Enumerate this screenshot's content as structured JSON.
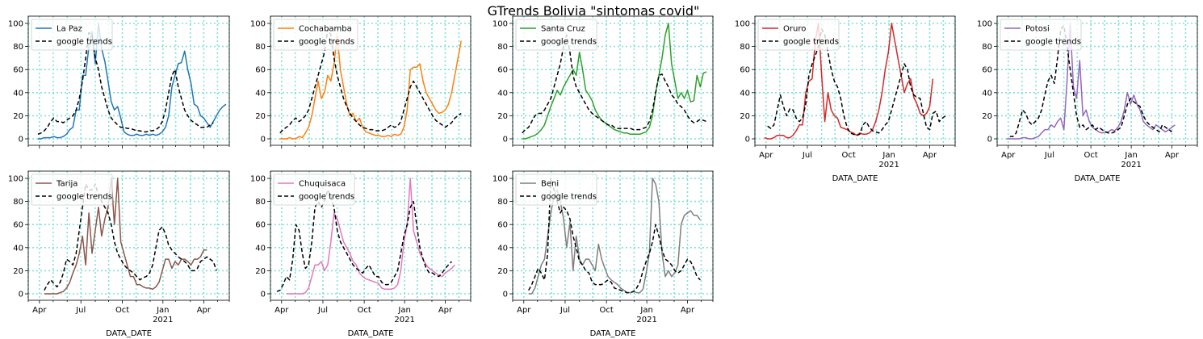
{
  "figure": {
    "title": "GTrends Bolivia \"sintomas covid\"",
    "background": "#ffffff",
    "grid_color": "#7fe3d6"
  },
  "chart_data": [
    {
      "type": "line",
      "region": "La Paz",
      "color": "#1f77b4",
      "x_start": "2020-03-29",
      "series": [
        {
          "name": "La Paz",
          "style": "solid",
          "start_week": 0,
          "values": [
            0,
            0,
            1,
            1,
            1,
            2,
            1,
            1,
            2,
            4,
            8,
            10,
            25,
            25,
            55,
            55,
            80,
            93,
            65,
            100,
            78,
            67,
            50,
            32,
            25,
            28,
            18,
            6,
            4,
            3,
            3,
            4,
            3,
            3,
            4,
            3,
            4,
            3,
            4,
            6,
            10,
            20,
            45,
            55,
            65,
            66,
            76,
            60,
            48,
            30,
            28,
            20,
            18,
            14,
            10,
            15,
            20,
            25,
            28,
            30
          ]
        },
        {
          "name": "google trends",
          "style": "dashed",
          "start_week": 0,
          "values": [
            4,
            5,
            7,
            10,
            15,
            18,
            15,
            15,
            14,
            16,
            18,
            20,
            25,
            35,
            50,
            70,
            92,
            90,
            70,
            60,
            45,
            35,
            25,
            18,
            15,
            12,
            10,
            10,
            9,
            9,
            8,
            7,
            7,
            6,
            6,
            7,
            7,
            8,
            10,
            15,
            25,
            40,
            55,
            60,
            45,
            35,
            25,
            20,
            16,
            14,
            12,
            10,
            10,
            10,
            12,
            14
          ]
        }
      ],
      "ylim": [
        0,
        100
      ],
      "y_ticks": [
        0,
        20,
        40,
        60,
        80,
        100
      ],
      "x_ticks": [],
      "xlabel": ""
    },
    {
      "type": "line",
      "region": "Cochabamba",
      "color": "#ff7f0e",
      "x_start": "2020-03-29",
      "series": [
        {
          "name": "Cochabamba",
          "style": "solid",
          "start_week": 0,
          "values": [
            0,
            0,
            0,
            1,
            0,
            0,
            2,
            1,
            5,
            10,
            20,
            35,
            50,
            35,
            40,
            55,
            50,
            65,
            90,
            60,
            45,
            30,
            20,
            22,
            15,
            18,
            10,
            6,
            5,
            4,
            3,
            3,
            2,
            2,
            3,
            2,
            4,
            3,
            4,
            10,
            25,
            60,
            62,
            62,
            65,
            50,
            40,
            35,
            30,
            25,
            22,
            23,
            25,
            30,
            40,
            55,
            70,
            85
          ]
        },
        {
          "name": "google trends",
          "style": "dashed",
          "start_week": 0,
          "values": [
            5,
            8,
            10,
            12,
            16,
            18,
            15,
            17,
            20,
            25,
            35,
            45,
            55,
            65,
            75,
            95,
            90,
            70,
            55,
            45,
            35,
            28,
            22,
            18,
            15,
            12,
            10,
            9,
            8,
            8,
            7,
            7,
            7,
            8,
            10,
            12,
            10,
            11,
            15,
            25,
            35,
            45,
            50,
            45,
            40,
            35,
            30,
            25,
            20,
            16,
            14,
            12,
            10,
            12,
            14,
            18,
            20,
            22
          ]
        }
      ],
      "ylim": [
        0,
        100
      ],
      "y_ticks": [
        0,
        20,
        40,
        60,
        80,
        100
      ],
      "x_ticks": [],
      "xlabel": ""
    },
    {
      "type": "line",
      "region": "Santa Cruz",
      "color": "#2ca02c",
      "x_start": "2020-03-29",
      "series": [
        {
          "name": "Santa Cruz",
          "style": "solid",
          "start_week": 0,
          "values": [
            0,
            0,
            1,
            2,
            3,
            5,
            8,
            12,
            20,
            28,
            35,
            42,
            38,
            45,
            50,
            55,
            60,
            55,
            75,
            60,
            42,
            38,
            33,
            25,
            20,
            16,
            14,
            12,
            10,
            8,
            7,
            6,
            5,
            5,
            4,
            4,
            4,
            4,
            5,
            6,
            10,
            20,
            40,
            55,
            70,
            90,
            100,
            65,
            50,
            35,
            40,
            35,
            42,
            32,
            33,
            55,
            45,
            57,
            58
          ]
        },
        {
          "name": "google trends",
          "style": "dashed",
          "start_week": 0,
          "values": [
            5,
            8,
            10,
            15,
            20,
            22,
            22,
            25,
            30,
            35,
            45,
            55,
            65,
            80,
            90,
            75,
            55,
            45,
            40,
            35,
            30,
            25,
            22,
            20,
            18,
            16,
            14,
            12,
            12,
            10,
            9,
            9,
            9,
            9,
            9,
            8,
            8,
            8,
            9,
            10,
            15,
            25,
            40,
            55,
            56,
            50,
            45,
            38,
            35,
            30,
            28,
            25,
            20,
            16,
            14,
            15,
            17,
            16,
            15
          ]
        }
      ],
      "ylim": [
        0,
        100
      ],
      "y_ticks": [
        0,
        20,
        40,
        60,
        80,
        100
      ],
      "x_ticks": [],
      "xlabel": ""
    },
    {
      "type": "line",
      "region": "Oruro",
      "color": "#d62728",
      "x_start": "2020-03-08",
      "series": [
        {
          "name": "Oruro",
          "style": "solid",
          "start_week": 3,
          "values": [
            1,
            0,
            0,
            1,
            3,
            3,
            3,
            1,
            1,
            3,
            7,
            12,
            12,
            40,
            50,
            52,
            85,
            100,
            55,
            15,
            40,
            25,
            20,
            18,
            10,
            9,
            8,
            6,
            5,
            3,
            5,
            4,
            4,
            5,
            8,
            15,
            25,
            40,
            60,
            75,
            100,
            85,
            70,
            55,
            40,
            48,
            52,
            36,
            30,
            22,
            20,
            22,
            28,
            52
          ]
        },
        {
          "name": "google trends",
          "style": "dashed",
          "start_week": 4,
          "values": [
            11,
            9,
            12,
            25,
            38,
            28,
            20,
            26,
            25,
            18,
            15,
            18,
            30,
            55,
            65,
            72,
            80,
            95,
            90,
            75,
            60,
            50,
            45,
            35,
            20,
            10,
            5,
            4,
            3,
            4,
            12,
            15,
            10,
            7,
            6,
            5,
            8,
            12,
            15,
            25,
            35,
            45,
            55,
            65,
            60,
            45,
            38,
            36,
            35,
            22,
            10,
            8,
            22,
            24,
            15,
            18,
            20
          ]
        }
      ],
      "ylim": [
        0,
        100
      ],
      "y_ticks": [
        0,
        20,
        40,
        60,
        80,
        100
      ],
      "x_ticks": [
        "Apr",
        "Jul",
        "Oct",
        "Jan\n2021",
        "Apr"
      ],
      "xlabel": "DATA_DATE"
    },
    {
      "type": "line",
      "region": "Potosi",
      "color": "#9467bd",
      "x_start": "2020-03-08",
      "series": [
        {
          "name": "Potosi",
          "style": "solid",
          "start_week": 3,
          "values": [
            0,
            0,
            0,
            0,
            0,
            1,
            1,
            0,
            0,
            1,
            2,
            5,
            8,
            8,
            12,
            10,
            15,
            18,
            8,
            50,
            100,
            45,
            35,
            68,
            20,
            25,
            15,
            10,
            8,
            6,
            5,
            6,
            6,
            8,
            7,
            10,
            15,
            25,
            40,
            30,
            38,
            30,
            25,
            15,
            12,
            10,
            8,
            12,
            10,
            8,
            6,
            8,
            10,
            12
          ]
        },
        {
          "name": "google trends",
          "style": "dashed",
          "start_week": 4,
          "values": [
            2,
            2,
            5,
            15,
            25,
            22,
            15,
            12,
            15,
            18,
            25,
            38,
            50,
            55,
            48,
            70,
            95,
            98,
            80,
            60,
            40,
            20,
            10,
            12,
            8,
            10,
            12,
            8,
            10,
            8,
            6,
            5,
            5,
            6,
            8,
            10,
            20,
            30,
            35,
            32,
            30,
            28,
            20,
            15,
            12,
            10,
            8,
            6,
            12,
            10,
            8,
            6
          ]
        }
      ],
      "ylim": [
        0,
        100
      ],
      "y_ticks": [
        0,
        20,
        40,
        60,
        80,
        100
      ],
      "x_ticks": [
        "Apr",
        "Jul",
        "Oct",
        "Jan\n2021",
        "Apr"
      ],
      "xlabel": "DATA_DATE"
    },
    {
      "type": "line",
      "region": "Tarija",
      "color": "#8c564b",
      "x_start": "2020-03-08",
      "series": [
        {
          "name": "Tarija",
          "style": "solid",
          "start_week": 5,
          "values": [
            0,
            0,
            0,
            0,
            0,
            1,
            2,
            5,
            10,
            18,
            25,
            35,
            50,
            25,
            70,
            35,
            55,
            75,
            50,
            65,
            75,
            100,
            60,
            100,
            45,
            35,
            25,
            15,
            15,
            8,
            8,
            6,
            5,
            5,
            4,
            6,
            10,
            20,
            30,
            30,
            22,
            28,
            25,
            30,
            30,
            28,
            25,
            30,
            30,
            32,
            38,
            38
          ]
        },
        {
          "name": "google trends",
          "style": "dashed",
          "start_week": 5,
          "values": [
            3,
            8,
            12,
            9,
            6,
            10,
            18,
            30,
            28,
            25,
            35,
            55,
            75,
            95,
            90,
            90,
            95,
            85,
            80,
            75,
            70,
            60,
            45,
            35,
            30,
            25,
            22,
            20,
            18,
            15,
            12,
            14,
            15,
            18,
            25,
            40,
            55,
            58,
            52,
            42,
            38,
            35,
            32,
            30,
            28,
            25,
            20,
            20,
            22,
            28,
            30,
            32,
            30,
            28,
            20
          ]
        }
      ],
      "ylim": [
        0,
        100
      ],
      "y_ticks": [
        0,
        20,
        40,
        60,
        80,
        100
      ],
      "x_ticks": [
        "Apr",
        "Jul",
        "Oct",
        "Jan\n2021",
        "Apr"
      ],
      "xlabel": "DATA_DATE"
    },
    {
      "type": "line",
      "region": "Chuquisaca",
      "color": "#e377c2",
      "x_start": "2020-03-08",
      "series": [
        {
          "name": "Chuquisaca",
          "style": "solid",
          "start_week": 5,
          "values": [
            0,
            0,
            0,
            0,
            0,
            0,
            1,
            5,
            15,
            25,
            25,
            28,
            20,
            25,
            45,
            70,
            65,
            55,
            45,
            40,
            35,
            28,
            25,
            18,
            15,
            13,
            12,
            11,
            10,
            9,
            5,
            4,
            4,
            4,
            5,
            8,
            20,
            45,
            60,
            100,
            55,
            45,
            35,
            30,
            25,
            22,
            20,
            18,
            16,
            15,
            18,
            20,
            22,
            25
          ]
        },
        {
          "name": "google trends",
          "style": "dashed",
          "start_week": 2,
          "values": [
            2,
            3,
            8,
            15,
            12,
            30,
            60,
            55,
            35,
            22,
            25,
            45,
            75,
            80,
            75,
            80,
            90,
            85,
            75,
            55,
            45,
            40,
            35,
            30,
            25,
            22,
            20,
            18,
            22,
            25,
            20,
            15,
            15,
            10,
            8,
            8,
            10,
            15,
            20,
            35,
            50,
            60,
            75,
            80,
            60,
            40,
            30,
            22,
            18,
            18,
            16,
            15,
            18,
            22,
            25,
            28
          ]
        }
      ],
      "ylim": [
        0,
        100
      ],
      "y_ticks": [
        0,
        20,
        40,
        60,
        80,
        100
      ],
      "x_ticks": [
        "Apr",
        "Jul",
        "Oct",
        "Jan\n2021",
        "Apr"
      ],
      "xlabel": "DATA_DATE"
    },
    {
      "type": "line",
      "region": "Beni",
      "color": "#7f7f7f",
      "x_start": "2020-03-08",
      "series": [
        {
          "name": "Beni",
          "style": "solid",
          "start_week": 5,
          "values": [
            0,
            0,
            5,
            15,
            25,
            30,
            50,
            70,
            85,
            90,
            80,
            65,
            40,
            62,
            20,
            50,
            30,
            25,
            30,
            30,
            25,
            20,
            43,
            30,
            22,
            15,
            12,
            10,
            8,
            5,
            3,
            1,
            1,
            2,
            1,
            1,
            4,
            18,
            35,
            100,
            95,
            80,
            35,
            15,
            20,
            15,
            18,
            25,
            60,
            68,
            70,
            72,
            68,
            68,
            64
          ]
        },
        {
          "name": "google trends",
          "style": "dashed",
          "start_week": 5,
          "values": [
            3,
            8,
            15,
            22,
            18,
            12,
            35,
            100,
            90,
            80,
            70,
            75,
            72,
            65,
            50,
            40,
            28,
            25,
            20,
            18,
            10,
            8,
            8,
            8,
            10,
            12,
            10,
            5,
            4,
            3,
            2,
            1,
            1,
            2,
            5,
            10,
            20,
            28,
            35,
            45,
            60,
            50,
            38,
            30,
            28,
            25,
            20,
            18,
            20,
            25,
            30,
            28,
            22,
            15,
            12
          ]
        }
      ],
      "ylim": [
        0,
        100
      ],
      "y_ticks": [
        0,
        20,
        40,
        60,
        80,
        100
      ],
      "x_ticks": [
        "Apr",
        "Jul",
        "Oct",
        "Jan\n2021",
        "Apr"
      ],
      "xlabel": "DATA_DATE"
    }
  ]
}
